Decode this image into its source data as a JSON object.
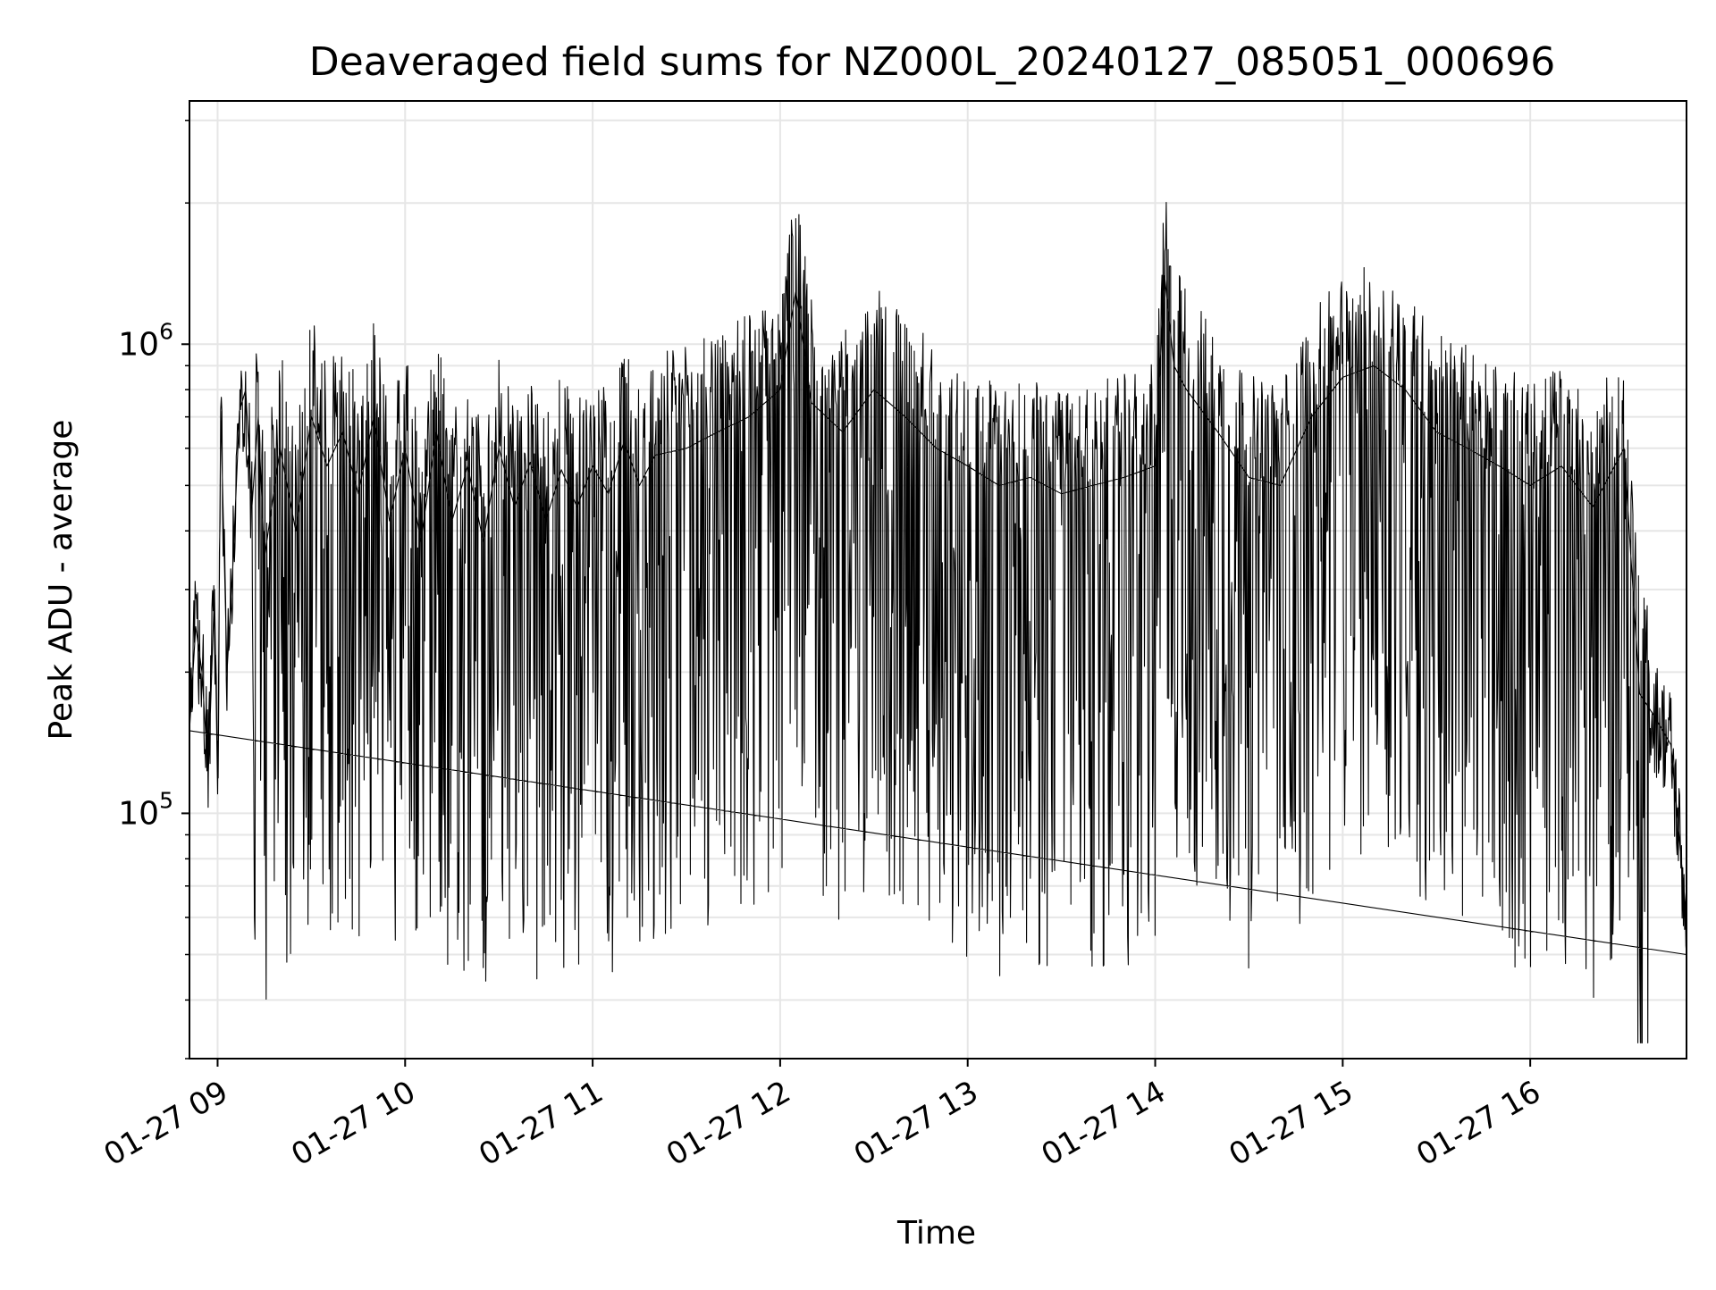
{
  "chart_data": {
    "type": "line",
    "title": "Deaveraged field sums for NZ000L_20240127_085051_000696",
    "xlabel": "Time",
    "ylabel": "Peak ADU - average",
    "x_scale": "time",
    "y_scale": "log",
    "xlim": [
      "2024-01-27 08:51",
      "2024-01-27 16:50"
    ],
    "ylim": [
      30000,
      3300000
    ],
    "x_ticks": [
      {
        "value": "2024-01-27 09:00",
        "label": "01-27 09"
      },
      {
        "value": "2024-01-27 10:00",
        "label": "01-27 10"
      },
      {
        "value": "2024-01-27 11:00",
        "label": "01-27 11"
      },
      {
        "value": "2024-01-27 12:00",
        "label": "01-27 12"
      },
      {
        "value": "2024-01-27 13:00",
        "label": "01-27 13"
      },
      {
        "value": "2024-01-27 14:00",
        "label": "01-27 14"
      },
      {
        "value": "2024-01-27 15:00",
        "label": "01-27 15"
      },
      {
        "value": "2024-01-27 16:00",
        "label": "01-27 16"
      }
    ],
    "y_ticks": [
      {
        "value": 100000,
        "label_base": "10",
        "label_exp": "5"
      },
      {
        "value": 1000000,
        "label_base": "10",
        "label_exp": "6"
      }
    ],
    "grid": true,
    "legend": "none",
    "line_color": "#000000",
    "series": [
      {
        "x": [
          "08:51",
          "08:53",
          "08:55",
          "08:57",
          "08:59",
          "09:00",
          "09:01",
          "09:03",
          "09:05",
          "09:07",
          "09:09",
          "09:11",
          "09:13",
          "09:15",
          "09:20",
          "09:25",
          "09:30",
          "09:35",
          "09:40",
          "09:45",
          "09:50",
          "09:55",
          "10:00",
          "10:05",
          "10:10",
          "10:15",
          "10:20",
          "10:25",
          "10:30",
          "10:35",
          "10:40",
          "10:45",
          "10:50",
          "10:55",
          "11:00",
          "11:05",
          "11:10",
          "11:15",
          "11:20",
          "11:30",
          "11:40",
          "11:50",
          "12:00",
          "12:05",
          "12:10",
          "12:20",
          "12:30",
          "12:40",
          "12:50",
          "13:00",
          "13:10",
          "13:20",
          "13:30",
          "13:40",
          "13:50",
          "14:00",
          "14:03",
          "14:06",
          "14:10",
          "14:20",
          "14:30",
          "14:40",
          "14:50",
          "15:00",
          "15:10",
          "15:20",
          "15:30",
          "15:40",
          "15:50",
          "16:00",
          "16:10",
          "16:20",
          "16:30",
          "16:35",
          "16:40",
          "16:45",
          "16:50"
        ],
        "y": [
          150000,
          250000,
          200000,
          120000,
          300000,
          110000,
          720000,
          200000,
          350000,
          720000,
          800000,
          450000,
          700000,
          350000,
          600000,
          400000,
          700000,
          550000,
          650000,
          480000,
          700000,
          420000,
          600000,
          380000,
          650000,
          420000,
          550000,
          380000,
          600000,
          450000,
          560000,
          420000,
          540000,
          450000,
          550000,
          480000,
          620000,
          500000,
          580000,
          600000,
          650000,
          700000,
          800000,
          1300000,
          750000,
          650000,
          800000,
          700000,
          600000,
          550000,
          500000,
          520000,
          480000,
          500000,
          520000,
          550000,
          1400000,
          900000,
          800000,
          650000,
          520000,
          500000,
          700000,
          850000,
          900000,
          800000,
          650000,
          600000,
          550000,
          500000,
          550000,
          450000,
          600000,
          180000,
          160000,
          140000,
          60000
        ]
      }
    ]
  }
}
